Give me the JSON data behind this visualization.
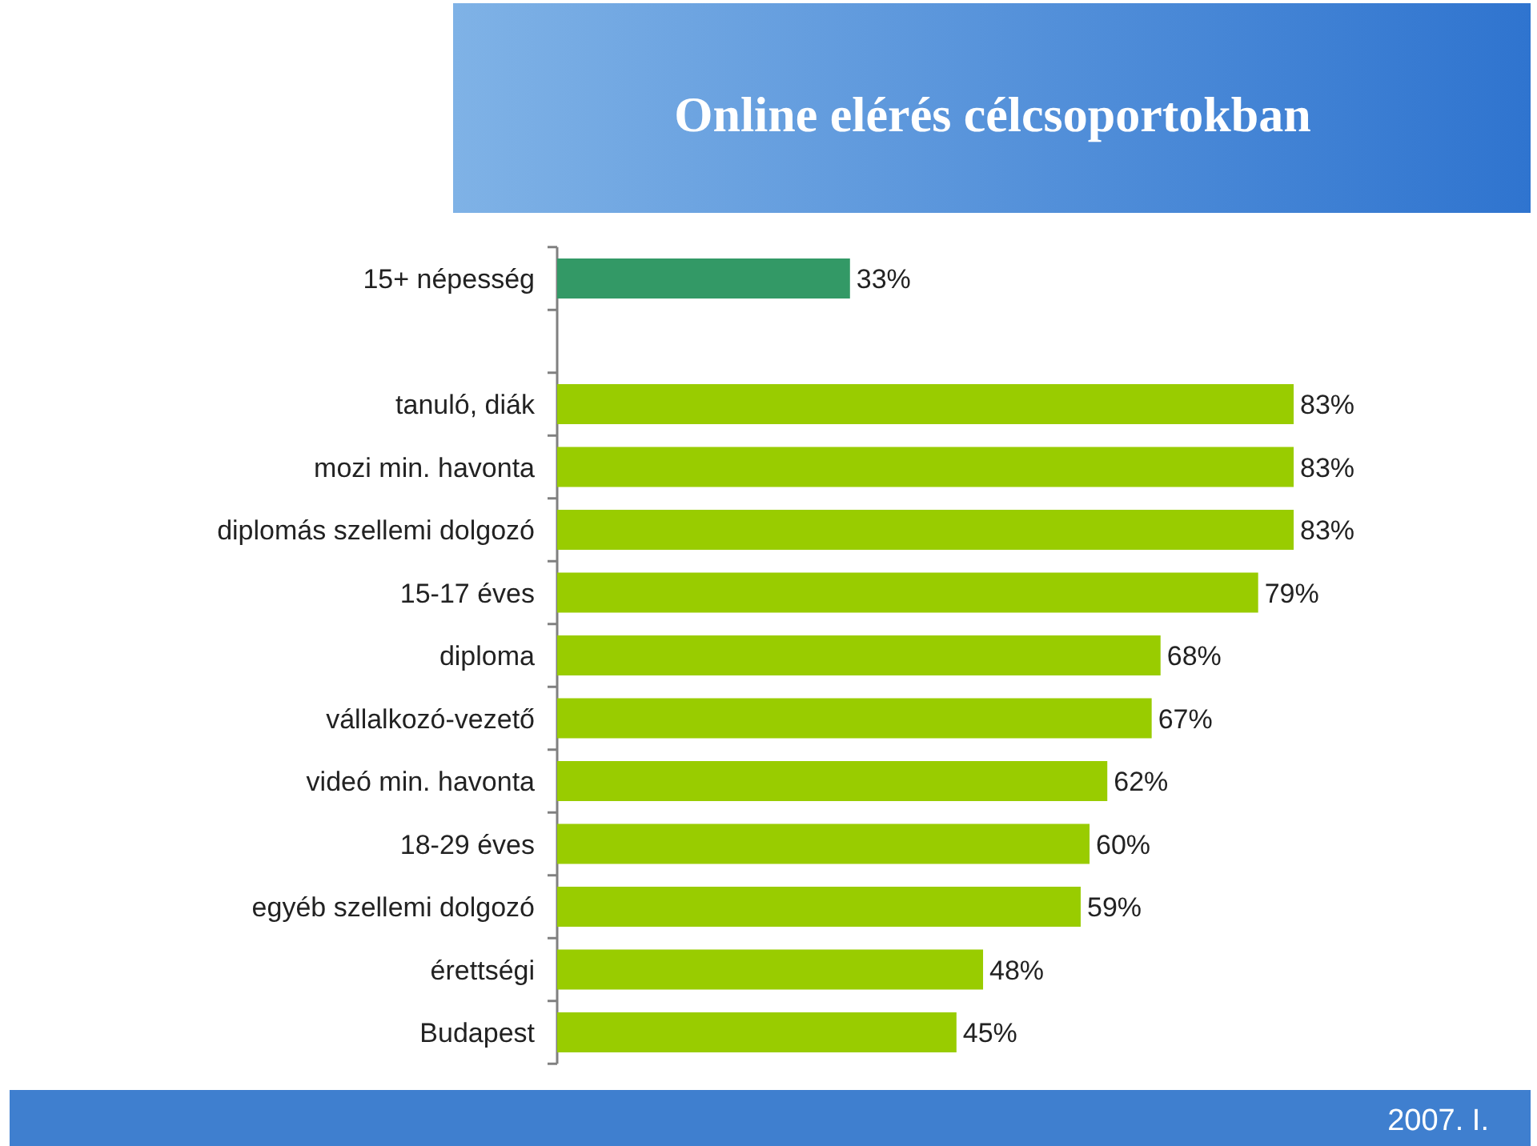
{
  "chart_data": {
    "type": "bar",
    "orientation": "horizontal",
    "title": "Online elérés célcsoportokban",
    "categories": [
      "15+ népesség",
      null,
      "tanuló, diák",
      "mozi min. havonta",
      "diplomás szellemi dolgozó",
      "15-17 éves",
      "diploma",
      "vállalkozó-vezető",
      "videó min. havonta",
      "18-29 éves",
      "egyéb szellemi dolgozó",
      "érettségi",
      "Budapest"
    ],
    "values": [
      33,
      null,
      83,
      83,
      83,
      79,
      68,
      67,
      62,
      60,
      59,
      48,
      45
    ],
    "colors": [
      "#339966",
      null,
      "#99cc00",
      "#99cc00",
      "#99cc00",
      "#99cc00",
      "#99cc00",
      "#99cc00",
      "#99cc00",
      "#99cc00",
      "#99cc00",
      "#99cc00",
      "#99cc00"
    ],
    "value_labels": [
      "33%",
      null,
      "83%",
      "83%",
      "83%",
      "79%",
      "68%",
      "67%",
      "62%",
      "60%",
      "59%",
      "48%",
      "45%"
    ],
    "annotations": [
      "2007. I."
    ]
  }
}
